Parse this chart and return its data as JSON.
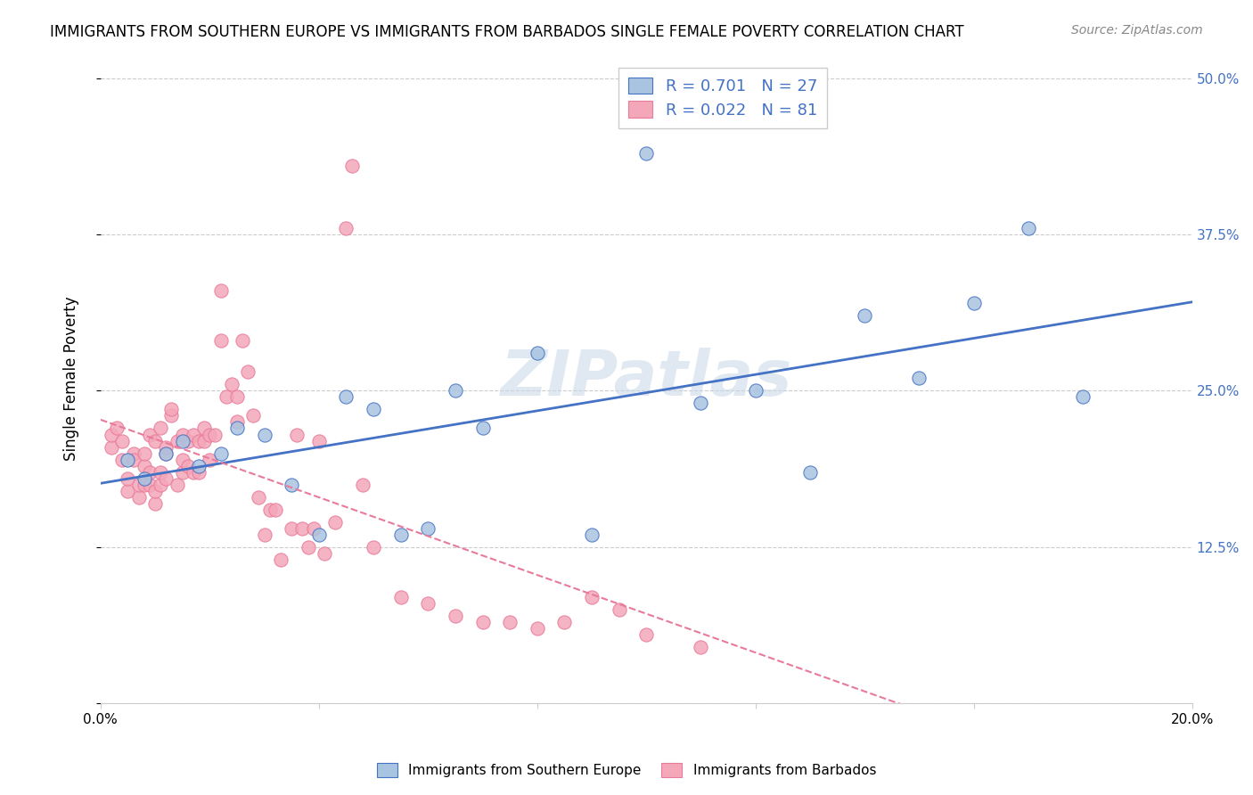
{
  "title": "IMMIGRANTS FROM SOUTHERN EUROPE VS IMMIGRANTS FROM BARBADOS SINGLE FEMALE POVERTY CORRELATION CHART",
  "source": "Source: ZipAtlas.com",
  "ylabel": "Single Female Poverty",
  "xlim": [
    0.0,
    0.2
  ],
  "ylim": [
    0.0,
    0.52
  ],
  "xticks": [
    0.0,
    0.04,
    0.08,
    0.12,
    0.16,
    0.2
  ],
  "xticklabels": [
    "0.0%",
    "",
    "",
    "",
    "",
    "20.0%"
  ],
  "yticks": [
    0.0,
    0.125,
    0.25,
    0.375,
    0.5
  ],
  "yticklabels": [
    "",
    "12.5%",
    "25.0%",
    "37.5%",
    "50.0%"
  ],
  "blue_R": "0.701",
  "blue_N": "27",
  "pink_R": "0.022",
  "pink_N": "81",
  "blue_color": "#a8c4e0",
  "pink_color": "#f4a7b9",
  "blue_line_color": "#4472c4",
  "pink_line_color": "#e87a9a",
  "legend_label_blue": "Immigrants from Southern Europe",
  "legend_label_pink": "Immigrants from Barbados",
  "watermark": "ZIPatlas",
  "blue_scatter_x": [
    0.005,
    0.008,
    0.012,
    0.015,
    0.018,
    0.022,
    0.025,
    0.03,
    0.035,
    0.04,
    0.045,
    0.05,
    0.055,
    0.06,
    0.065,
    0.07,
    0.08,
    0.09,
    0.1,
    0.11,
    0.12,
    0.13,
    0.14,
    0.15,
    0.16,
    0.17,
    0.18
  ],
  "blue_scatter_y": [
    0.195,
    0.18,
    0.2,
    0.21,
    0.19,
    0.2,
    0.22,
    0.215,
    0.175,
    0.135,
    0.245,
    0.235,
    0.135,
    0.14,
    0.25,
    0.22,
    0.28,
    0.135,
    0.44,
    0.24,
    0.25,
    0.185,
    0.31,
    0.26,
    0.32,
    0.38,
    0.245
  ],
  "pink_scatter_x": [
    0.002,
    0.002,
    0.003,
    0.004,
    0.004,
    0.005,
    0.005,
    0.006,
    0.006,
    0.007,
    0.007,
    0.008,
    0.008,
    0.008,
    0.009,
    0.009,
    0.009,
    0.01,
    0.01,
    0.01,
    0.011,
    0.011,
    0.011,
    0.012,
    0.012,
    0.012,
    0.013,
    0.013,
    0.014,
    0.014,
    0.015,
    0.015,
    0.015,
    0.016,
    0.016,
    0.017,
    0.017,
    0.018,
    0.018,
    0.019,
    0.019,
    0.02,
    0.02,
    0.021,
    0.022,
    0.022,
    0.023,
    0.024,
    0.025,
    0.025,
    0.026,
    0.027,
    0.028,
    0.029,
    0.03,
    0.031,
    0.032,
    0.033,
    0.035,
    0.036,
    0.037,
    0.038,
    0.039,
    0.04,
    0.041,
    0.043,
    0.045,
    0.046,
    0.048,
    0.05,
    0.055,
    0.06,
    0.065,
    0.07,
    0.075,
    0.08,
    0.085,
    0.09,
    0.095,
    0.1,
    0.11
  ],
  "pink_scatter_y": [
    0.205,
    0.215,
    0.22,
    0.195,
    0.21,
    0.17,
    0.18,
    0.2,
    0.195,
    0.165,
    0.175,
    0.175,
    0.19,
    0.2,
    0.175,
    0.185,
    0.215,
    0.16,
    0.17,
    0.21,
    0.175,
    0.185,
    0.22,
    0.18,
    0.2,
    0.205,
    0.23,
    0.235,
    0.175,
    0.21,
    0.185,
    0.195,
    0.215,
    0.19,
    0.21,
    0.185,
    0.215,
    0.185,
    0.21,
    0.21,
    0.22,
    0.195,
    0.215,
    0.215,
    0.33,
    0.29,
    0.245,
    0.255,
    0.225,
    0.245,
    0.29,
    0.265,
    0.23,
    0.165,
    0.135,
    0.155,
    0.155,
    0.115,
    0.14,
    0.215,
    0.14,
    0.125,
    0.14,
    0.21,
    0.12,
    0.145,
    0.38,
    0.43,
    0.175,
    0.125,
    0.085,
    0.08,
    0.07,
    0.065,
    0.065,
    0.06,
    0.065,
    0.085,
    0.075,
    0.055,
    0.045
  ]
}
